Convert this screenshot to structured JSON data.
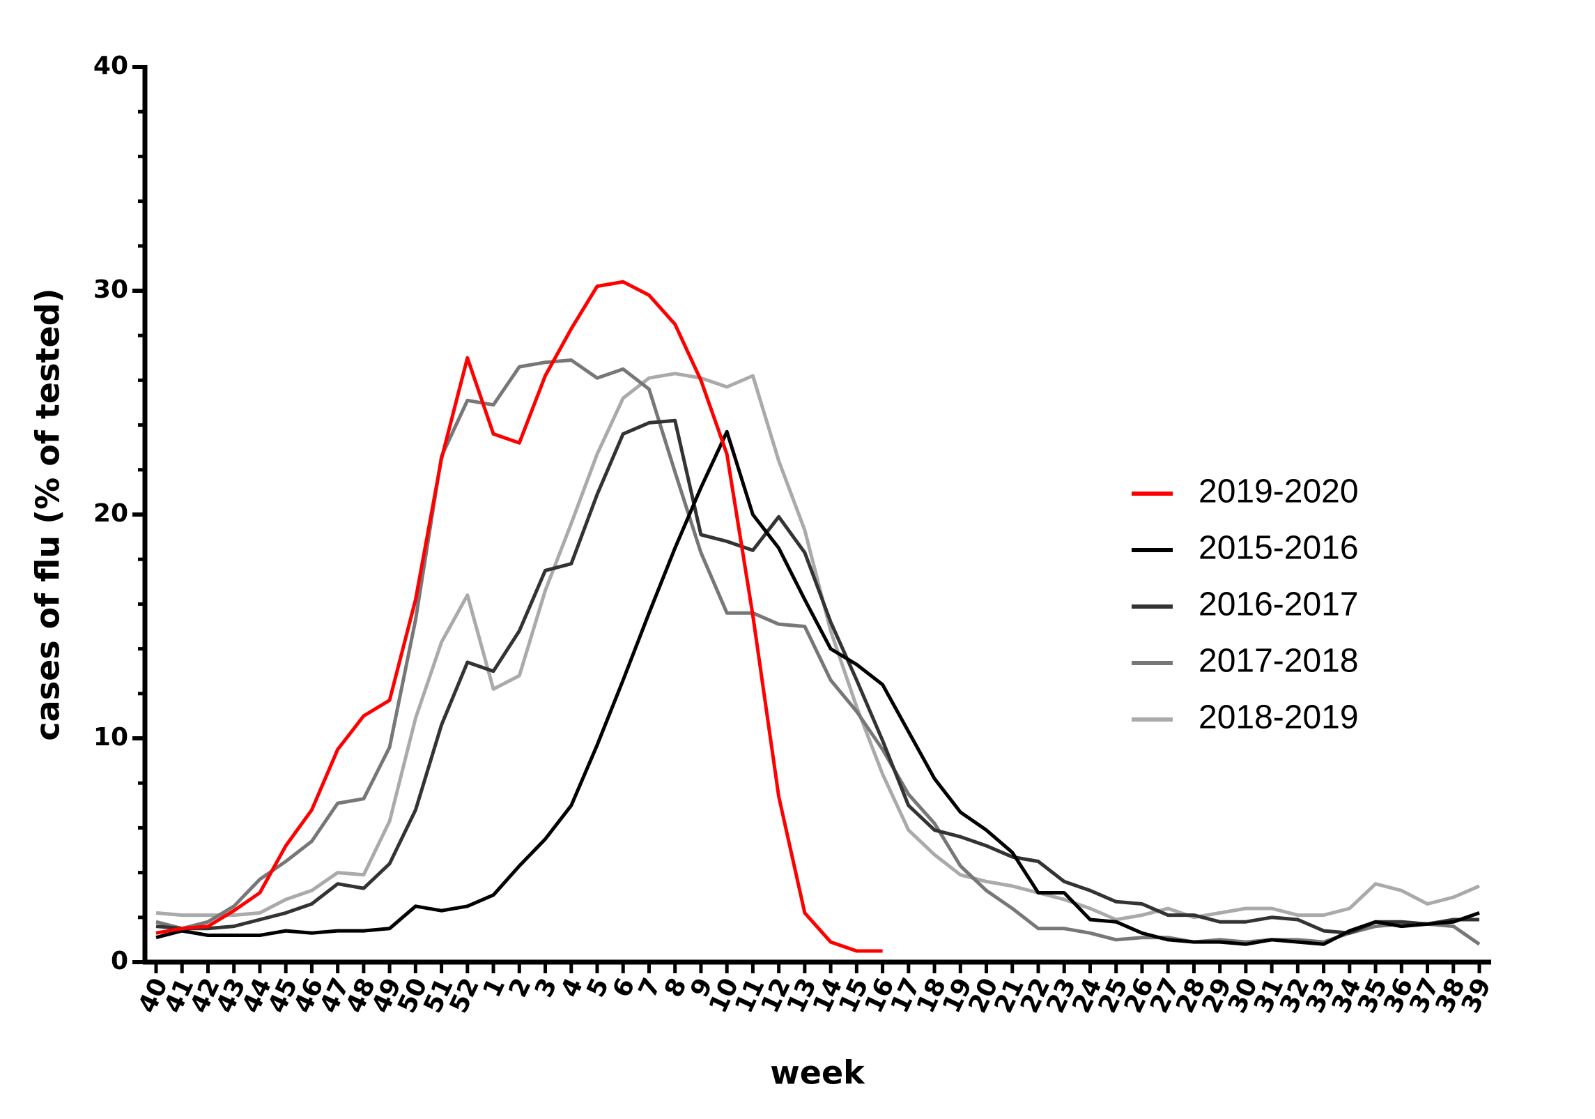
{
  "chart_data": {
    "type": "line",
    "xlabel": "week",
    "ylabel": "cases of flu (% of tested)",
    "categories": [
      "40",
      "41",
      "42",
      "43",
      "44",
      "45",
      "46",
      "47",
      "48",
      "49",
      "50",
      "51",
      "52",
      "1",
      "2",
      "3",
      "4",
      "5",
      "6",
      "7",
      "8",
      "9",
      "10",
      "11",
      "12",
      "13",
      "14",
      "15",
      "16",
      "17",
      "18",
      "19",
      "20",
      "21",
      "22",
      "23",
      "24",
      "25",
      "26",
      "27",
      "28",
      "29",
      "30",
      "31",
      "32",
      "33",
      "34",
      "35",
      "36",
      "37",
      "38",
      "39"
    ],
    "ylim": [
      0,
      40
    ],
    "yticks": [
      0,
      10,
      20,
      30,
      40
    ],
    "yminorticks": [
      2,
      4,
      6,
      8,
      12,
      14,
      16,
      18,
      22,
      24,
      26,
      28,
      32,
      34,
      36,
      38
    ],
    "legend": "right",
    "series": [
      {
        "name": "2019-2020",
        "color": "#ff0000",
        "values": [
          1.3,
          1.5,
          1.6,
          2.3,
          3.1,
          5.2,
          6.8,
          9.5,
          11,
          11.7,
          16.2,
          22.5,
          27,
          23.6,
          23.2,
          26.2,
          28.3,
          30.2,
          30.4,
          29.8,
          28.5,
          26,
          22.7,
          15.5,
          7.4,
          2.2,
          0.9,
          0.5,
          0.5,
          null,
          null,
          null,
          null,
          null,
          null,
          null,
          null,
          null,
          null,
          null,
          null,
          null,
          null,
          null,
          null,
          null,
          null,
          null,
          null,
          null,
          null,
          null
        ]
      },
      {
        "name": "2015-2016",
        "color": "#000000",
        "values": [
          1.1,
          1.4,
          1.2,
          1.2,
          1.2,
          1.4,
          1.3,
          1.4,
          1.4,
          1.5,
          2.5,
          2.3,
          2.5,
          3,
          4.3,
          5.5,
          7,
          9.7,
          12.6,
          15.6,
          18.5,
          21.2,
          23.7,
          20,
          18.5,
          16.2,
          14,
          13.3,
          12.4,
          10.3,
          8.2,
          6.7,
          5.9,
          4.9,
          3.1,
          3.1,
          1.9,
          1.8,
          1.3,
          1.0,
          0.9,
          0.9,
          0.8,
          1.0,
          0.9,
          0.8,
          1.4,
          1.8,
          1.6,
          1.7,
          1.8,
          2.2
        ]
      },
      {
        "name": "2016-2017",
        "color": "#333333",
        "values": [
          1.6,
          1.5,
          1.5,
          1.6,
          1.9,
          2.2,
          2.6,
          3.5,
          3.3,
          4.4,
          6.8,
          10.6,
          13.4,
          13,
          14.8,
          17.5,
          17.8,
          20.9,
          23.6,
          24.1,
          24.2,
          19.1,
          18.8,
          18.4,
          19.9,
          18.3,
          15.2,
          12.6,
          9.9,
          7,
          5.9,
          5.6,
          5.2,
          4.7,
          4.5,
          3.6,
          3.2,
          2.7,
          2.6,
          2.1,
          2.1,
          1.8,
          1.8,
          2.0,
          1.9,
          1.4,
          1.3,
          1.8,
          1.8,
          1.7,
          1.9,
          1.9
        ]
      },
      {
        "name": "2017-2018",
        "color": "#777777",
        "values": [
          1.8,
          1.5,
          1.8,
          2.5,
          3.7,
          4.5,
          5.4,
          7.1,
          7.3,
          9.6,
          15.3,
          22.6,
          25.1,
          24.9,
          26.6,
          26.8,
          26.9,
          26.1,
          26.5,
          25.6,
          21.9,
          18.3,
          15.6,
          15.6,
          15.1,
          15,
          12.6,
          11.2,
          9.5,
          7.5,
          6.2,
          4.3,
          3.2,
          2.4,
          1.5,
          1.5,
          1.3,
          1.0,
          1.1,
          1.1,
          0.9,
          1.0,
          0.9,
          1.0,
          1.0,
          0.9,
          1.3,
          1.6,
          1.7,
          1.7,
          1.6,
          0.8
        ]
      },
      {
        "name": "2018-2019",
        "color": "#aaaaaa",
        "values": [
          2.2,
          2.1,
          2.1,
          2.1,
          2.2,
          2.8,
          3.2,
          4,
          3.9,
          6.3,
          10.9,
          14.3,
          16.4,
          12.2,
          12.8,
          16.6,
          19.6,
          22.7,
          25.2,
          26.1,
          26.3,
          26.1,
          25.7,
          26.2,
          22.4,
          19.3,
          14.8,
          11.4,
          8.4,
          5.9,
          4.8,
          3.9,
          3.6,
          3.4,
          3.1,
          2.8,
          2.4,
          1.9,
          2.1,
          2.4,
          2.0,
          2.2,
          2.4,
          2.4,
          2.1,
          2.1,
          2.4,
          3.5,
          3.2,
          2.6,
          2.9,
          3.4
        ]
      }
    ]
  }
}
